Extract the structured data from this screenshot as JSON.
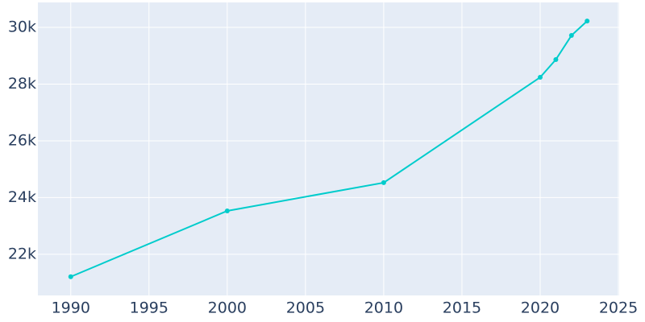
{
  "chart_data": {
    "type": "line",
    "x": [
      1990,
      2000,
      2010,
      2020,
      2021,
      2022,
      2023
    ],
    "series": [
      {
        "color": "#00cccc",
        "values": [
          21210,
          23530,
          24525,
          28240,
          28865,
          29715,
          30225
        ]
      }
    ],
    "xlim": [
      1987.9,
      2025.05
    ],
    "xticks": [
      1990,
      1995,
      2000,
      2005,
      2010,
      2015,
      2020,
      2025
    ],
    "ylim": [
      20550,
      30880
    ],
    "yticks": [
      {
        "value": 22000,
        "label": "22k"
      },
      {
        "value": 24000,
        "label": "24k"
      },
      {
        "value": 26000,
        "label": "26k"
      },
      {
        "value": 28000,
        "label": "28k"
      },
      {
        "value": 30000,
        "label": "30k"
      }
    ],
    "grid": true
  }
}
